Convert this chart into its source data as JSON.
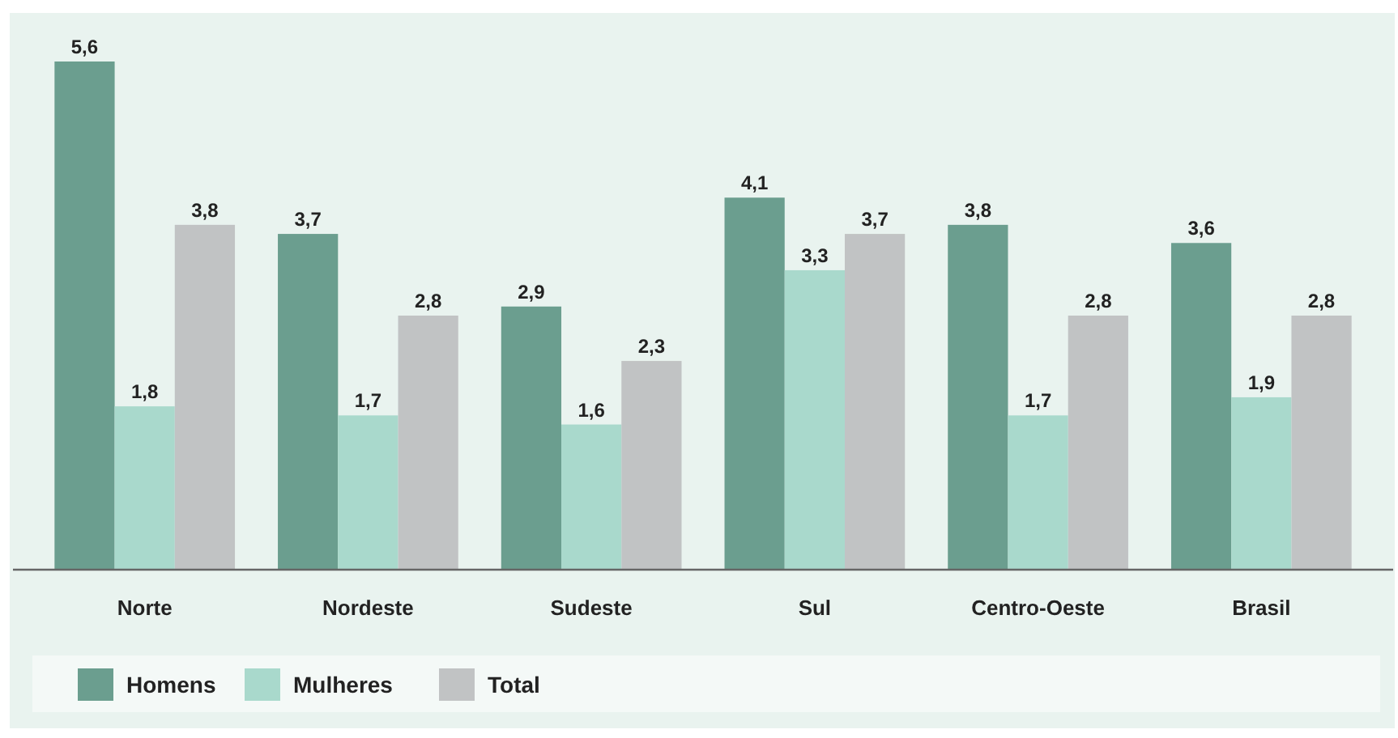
{
  "chart_data": {
    "type": "bar",
    "categories": [
      "Norte",
      "Nordeste",
      "Sudeste",
      "Sul",
      "Centro-Oeste",
      "Brasil"
    ],
    "series": [
      {
        "name": "Homens",
        "color": "#6b9e8f",
        "values": [
          5.6,
          3.7,
          2.9,
          4.1,
          3.8,
          3.6
        ],
        "value_labels": [
          "5,6",
          "3,7",
          "2,9",
          "4,1",
          "3,8",
          "3,6"
        ]
      },
      {
        "name": "Mulheres",
        "color": "#a9d9cc",
        "values": [
          1.8,
          1.7,
          1.6,
          3.3,
          1.7,
          1.9
        ],
        "value_labels": [
          "1,8",
          "1,7",
          "1,6",
          "3,3",
          "1,7",
          "1,9"
        ]
      },
      {
        "name": "Total",
        "color": "#c1c3c4",
        "values": [
          3.8,
          2.8,
          2.3,
          3.7,
          2.8,
          2.8
        ],
        "value_labels": [
          "3,8",
          "2,8",
          "2,3",
          "3,7",
          "2,8",
          "2,8"
        ]
      }
    ],
    "legend": "bottom",
    "grid": false
  }
}
